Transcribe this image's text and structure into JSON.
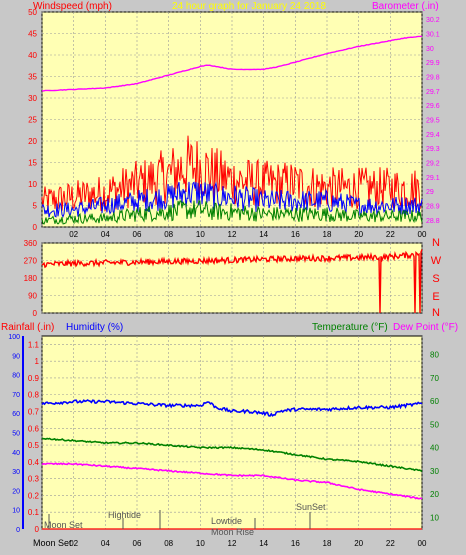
{
  "title": "24 hour graph for  January 24 2018",
  "colors": {
    "background": "#c8c8c8",
    "plot_bg": "#ffffb4",
    "grid": "#9a9a9a",
    "wind": "#ff0000",
    "gust": "#0000ff",
    "avg": "#008000",
    "barometer": "#ff00ff",
    "direction": "#ff0000",
    "humidity": "#0000ff",
    "temperature": "#008000",
    "dewpoint": "#ff00ff",
    "rain": "#ff0000",
    "annot": "#555555"
  },
  "x_ticks": [
    "02",
    "04",
    "06",
    "08",
    "10",
    "12",
    "14",
    "16",
    "18",
    "20",
    "22",
    "00"
  ],
  "chart_data": [
    {
      "type": "line",
      "name": "wind-barometer",
      "title": "24 hour graph for  January 24 2018",
      "left_axis_label": "Windspeed (mph)",
      "right_axis_label": "Barometer (.in)",
      "x_range_hours": [
        0,
        24
      ],
      "ylim_left": [
        0,
        50
      ],
      "ylim_right": [
        28.75,
        30.25
      ],
      "left_ticks": [
        "0",
        "5",
        "10",
        "15",
        "20",
        "25",
        "30",
        "35",
        "40",
        "45",
        "50"
      ],
      "right_ticks": [
        "28.8",
        "28.9",
        "29",
        "29.1",
        "29.2",
        "29.3",
        "29.4",
        "29.5",
        "29.6",
        "29.7",
        "29.8",
        "29.9",
        "30",
        "30.1",
        "30.2"
      ],
      "series": [
        {
          "id": "barometer",
          "axis": "right",
          "x": [
            0,
            2,
            4,
            6,
            8,
            9,
            10,
            10.5,
            11,
            12,
            13,
            14,
            15,
            16,
            18,
            20,
            22,
            23,
            24
          ],
          "values": [
            29.7,
            29.71,
            29.72,
            29.75,
            29.81,
            29.84,
            29.87,
            29.88,
            29.87,
            29.85,
            29.85,
            29.85,
            29.87,
            29.9,
            29.96,
            30.01,
            30.05,
            30.07,
            30.08
          ]
        },
        {
          "id": "wind-high",
          "axis": "left",
          "x": [
            0,
            2,
            4,
            6,
            8,
            9,
            10,
            11,
            12,
            14,
            16,
            18,
            20,
            22,
            24
          ],
          "values": [
            6,
            7,
            8,
            10,
            12,
            14,
            14,
            12,
            11,
            10,
            10,
            9,
            9,
            9,
            9
          ]
        },
        {
          "id": "wind-mid",
          "axis": "left",
          "x": [
            0,
            2,
            4,
            6,
            8,
            9,
            10,
            11,
            12,
            14,
            16,
            18,
            20,
            22,
            24
          ],
          "values": [
            4,
            4,
            5,
            6,
            7,
            8,
            8,
            7,
            7,
            6,
            6,
            6,
            5,
            5,
            5
          ]
        },
        {
          "id": "wind-low",
          "axis": "left",
          "x": [
            0,
            2,
            4,
            6,
            8,
            9,
            10,
            11,
            12,
            14,
            16,
            18,
            20,
            22,
            24
          ],
          "values": [
            1.5,
            2,
            2,
            3,
            3.5,
            4,
            4,
            3.5,
            3.5,
            3,
            3,
            3,
            2.5,
            2.5,
            2.5
          ]
        }
      ]
    },
    {
      "type": "line",
      "name": "wind-direction",
      "left_ticks": [
        "0",
        "90",
        "180",
        "270",
        "360"
      ],
      "right_labels": [
        "N",
        "W",
        "S",
        "E",
        "N"
      ],
      "ylim": [
        0,
        360
      ],
      "series": [
        {
          "id": "direction",
          "x": [
            0,
            2,
            4,
            6,
            8,
            10,
            12,
            14,
            16,
            18,
            20,
            21.3,
            21.35,
            21.4,
            22,
            23.5,
            23.55,
            23.6,
            24
          ],
          "values": [
            250,
            255,
            258,
            262,
            265,
            268,
            272,
            276,
            280,
            282,
            285,
            288,
            0,
            285,
            290,
            300,
            0,
            310,
            315
          ]
        }
      ]
    },
    {
      "type": "line",
      "name": "temp-humidity-rain",
      "rainfall_label": "Rainfall (.in)",
      "humidity_label": "Humidity (%)",
      "temperature_label": "Temperature (°F)",
      "dewpoint_label": "Dew Point (°F)",
      "rain_ticks": [
        "0",
        "0.1",
        "0.2",
        "0.3",
        "0.4",
        "0.5",
        "0.6",
        "0.7",
        "0.8",
        "0.9",
        "1",
        "1.1"
      ],
      "ylim_rain": [
        0,
        1.15
      ],
      "humidity_ticks": [
        "0",
        "10",
        "20",
        "30",
        "40",
        "50",
        "60",
        "70",
        "80",
        "90",
        "100"
      ],
      "ylim_humidity": [
        0,
        100
      ],
      "temp_ticks": [
        "10",
        "20",
        "30",
        "40",
        "50",
        "60",
        "70",
        "80"
      ],
      "ylim_temp": [
        5,
        88
      ],
      "series": [
        {
          "id": "humidity",
          "axis": "humidity",
          "x": [
            0,
            2,
            4,
            6,
            8,
            9,
            10,
            10.5,
            11,
            12,
            13,
            14,
            14.5,
            15,
            16,
            18,
            20,
            22,
            23,
            24
          ],
          "values": [
            65,
            66,
            66,
            65,
            64,
            64,
            64,
            66,
            63,
            61,
            61,
            60,
            59,
            61,
            62,
            62,
            63,
            63,
            64,
            65
          ]
        },
        {
          "id": "temperature",
          "axis": "temp",
          "x": [
            0,
            2,
            4,
            6,
            8,
            10,
            12,
            14,
            16,
            18,
            20,
            22,
            24
          ],
          "values": [
            44,
            43,
            42,
            42,
            41,
            40,
            40,
            39,
            37,
            35,
            34,
            32,
            30
          ]
        },
        {
          "id": "dewpoint",
          "axis": "temp",
          "x": [
            0,
            2,
            4,
            6,
            8,
            10,
            12,
            14,
            16,
            18,
            20,
            22,
            24
          ],
          "values": [
            33,
            33,
            32,
            31,
            30,
            29,
            28,
            28,
            26,
            25,
            22,
            20,
            18
          ]
        },
        {
          "id": "rainfall",
          "axis": "rain",
          "x": [
            0,
            24
          ],
          "values": [
            0,
            0
          ]
        }
      ]
    }
  ],
  "annotations": {
    "moonset_top": "Moon Set",
    "moonset_bottom": "Moon Set",
    "hightide": "Hightide",
    "lowtide": "Lowtide",
    "moonrise": "Moon Rise",
    "sunset": "SunSet"
  }
}
